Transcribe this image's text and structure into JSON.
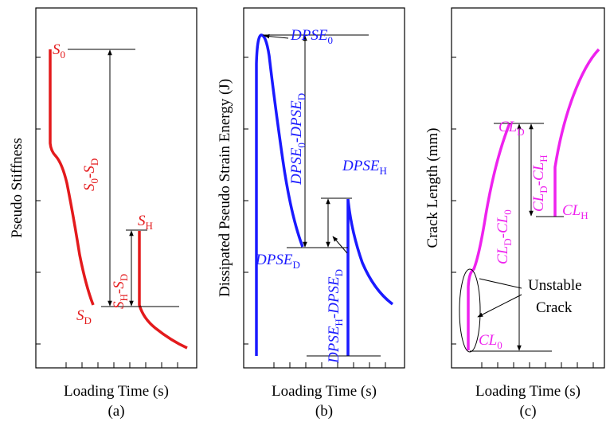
{
  "panels": [
    {
      "y_label": "Pseudo Stiffness",
      "x_label": "Loading Time (s)",
      "caption": "(a)",
      "annotations": [
        [
          {
            "text": "S",
            "italic": true
          },
          {
            "text": "0",
            "sub": true
          }
        ],
        [
          {
            "text": "S",
            "italic": true
          },
          {
            "text": "0",
            "sub": true
          },
          {
            "text": "-"
          },
          {
            "text": "S",
            "italic": true
          },
          {
            "text": "D",
            "sub": true
          }
        ],
        [
          {
            "text": "S",
            "italic": true
          },
          {
            "text": "H",
            "sub": true
          }
        ],
        [
          {
            "text": "S",
            "italic": true
          },
          {
            "text": "H",
            "sub": true
          },
          {
            "text": "-"
          },
          {
            "text": "S",
            "italic": true
          },
          {
            "text": "D",
            "sub": true
          }
        ],
        [
          {
            "text": "S",
            "italic": true
          },
          {
            "text": "D",
            "sub": true
          }
        ]
      ]
    },
    {
      "y_label": "Dissipated Pseudo Strain Energy (J)",
      "x_label": "Loading Time (s)",
      "caption": "(b)",
      "annotations": [
        [
          {
            "text": "DPSE",
            "italic": true
          },
          {
            "text": "0",
            "sub": true
          }
        ],
        [
          {
            "text": "DPSE",
            "italic": true
          },
          {
            "text": "0",
            "sub": true
          },
          {
            "text": "-"
          },
          {
            "text": "DPSE",
            "italic": true
          },
          {
            "text": "D",
            "sub": true
          }
        ],
        [
          {
            "text": "DPSE",
            "italic": true
          },
          {
            "text": "H",
            "sub": true
          }
        ],
        [
          {
            "text": "DPSE",
            "italic": true
          },
          {
            "text": "H",
            "sub": true
          },
          {
            "text": "-"
          },
          {
            "text": "DPSE",
            "italic": true
          },
          {
            "text": "D",
            "sub": true
          }
        ],
        [
          {
            "text": "DPSE",
            "italic": true
          },
          {
            "text": "D",
            "sub": true
          }
        ]
      ]
    },
    {
      "y_label": "Crack Length (mm)",
      "x_label": "Loading Time (s)",
      "caption": "(c)",
      "annotations": [
        [
          {
            "text": "CL",
            "italic": true
          },
          {
            "text": "D",
            "sub": true
          }
        ],
        [
          {
            "text": "CL",
            "italic": true
          },
          {
            "text": "D",
            "sub": true
          },
          {
            "text": "-"
          },
          {
            "text": "CL",
            "italic": true
          },
          {
            "text": "0",
            "sub": true
          }
        ],
        [
          {
            "text": "CL",
            "italic": true
          },
          {
            "text": "D",
            "sub": true
          },
          {
            "text": "-"
          },
          {
            "text": "CL",
            "italic": true
          },
          {
            "text": "H",
            "sub": true
          }
        ],
        [
          {
            "text": "CL",
            "italic": true
          },
          {
            "text": "H",
            "sub": true
          }
        ],
        [
          {
            "text": "CL",
            "italic": true
          },
          {
            "text": "0",
            "sub": true
          }
        ],
        [
          {
            "text": "Unstable"
          }
        ],
        [
          {
            "text": "Crack"
          }
        ]
      ]
    }
  ]
}
